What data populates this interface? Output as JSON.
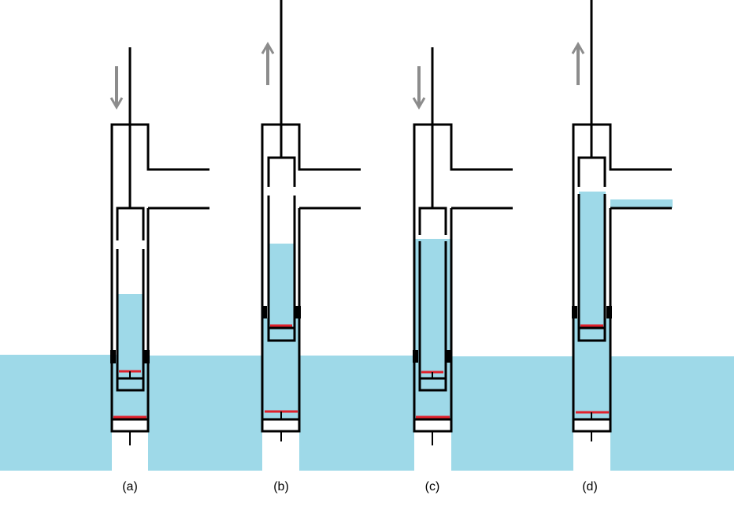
{
  "panels": [
    {
      "id": "a",
      "caption": "(a)",
      "arrow": "down"
    },
    {
      "id": "b",
      "caption": "(b)",
      "arrow": "up"
    },
    {
      "id": "c",
      "caption": "(c)",
      "arrow": "down"
    },
    {
      "id": "d",
      "caption": "(d)",
      "arrow": "up"
    }
  ],
  "colors": {
    "water": "#9ED9E8",
    "outline": "#000000",
    "arrow": "#8C8C8C",
    "valve_marker": "#E0202A",
    "background": "#FFFFFF"
  }
}
